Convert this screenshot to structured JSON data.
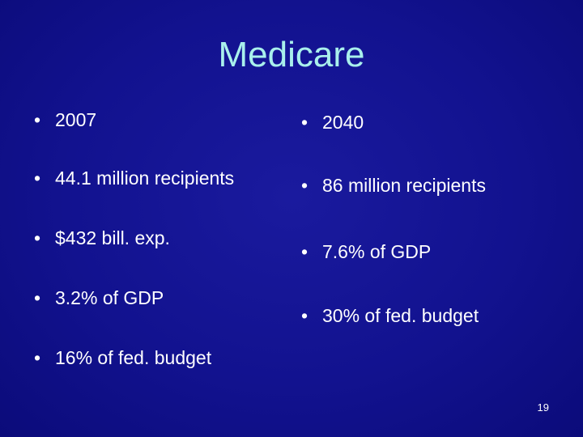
{
  "slide": {
    "title": "Medicare",
    "bullet_glyph": "•",
    "left_column": [
      "2007",
      "44.1 million recipients",
      "$432 bill. exp.",
      "3.2% of GDP",
      "16% of fed. budget"
    ],
    "right_column": [
      "2040",
      "86 million recipients",
      "7.6% of GDP",
      "30% of fed. budget"
    ],
    "page_number": "19"
  }
}
